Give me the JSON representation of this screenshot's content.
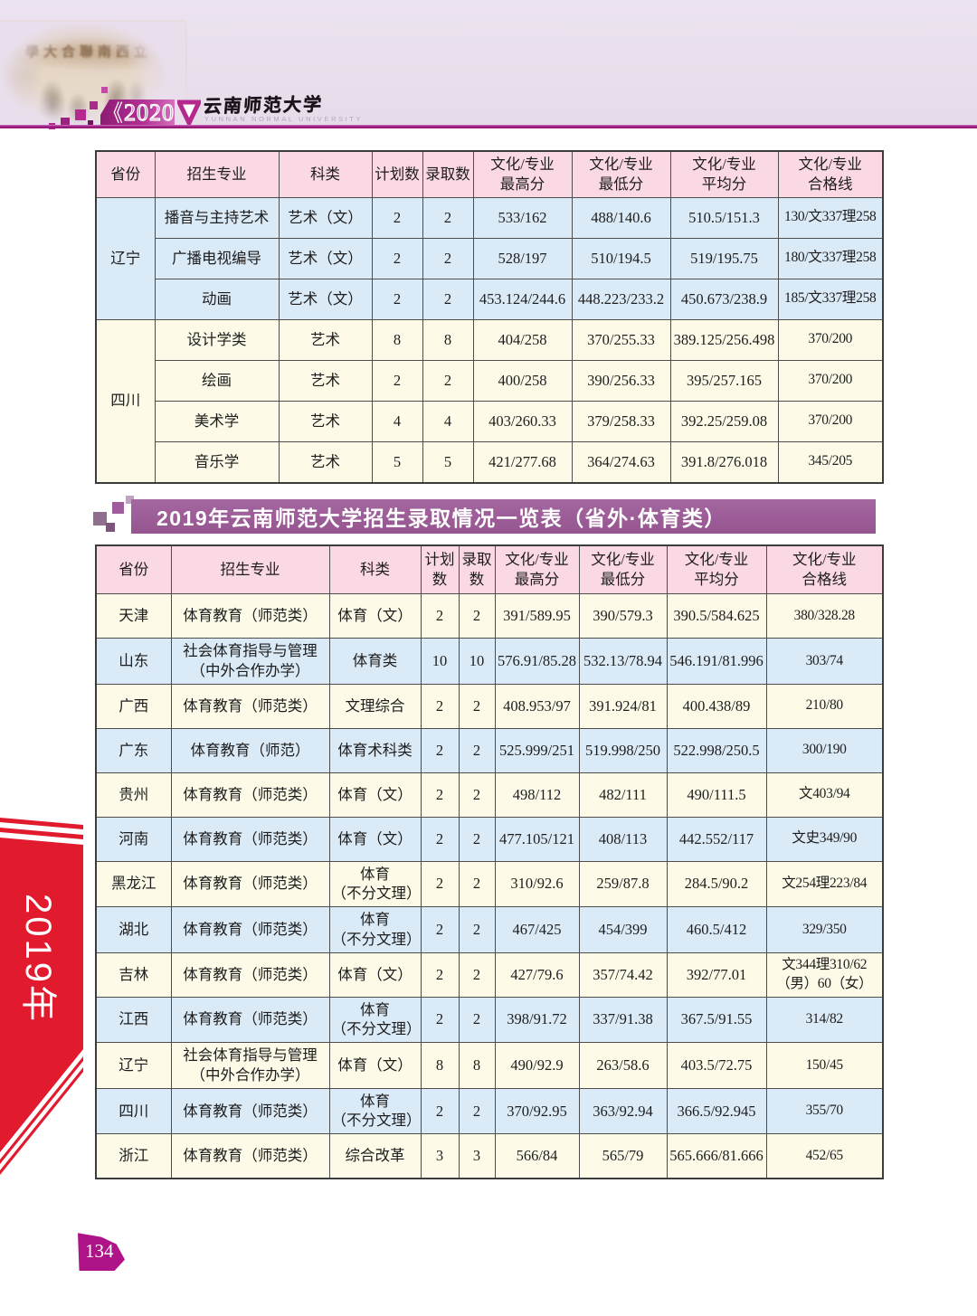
{
  "header": {
    "year_badge": "2020",
    "chevron": "《",
    "university_name": "云南师范大学",
    "university_name_en": "YUNNAN NORMAL UNIVERSITY",
    "photo_caption": "學大合聯南西立"
  },
  "section_banner": {
    "title": "2019年云南师范大学招生录取情况一览表（省外·体育类）"
  },
  "sidebar": {
    "year_label": "2019年"
  },
  "page_number": "134",
  "colors": {
    "accent_magenta": "#b5288e",
    "banner_purple": "#9d5d98",
    "ribbon_red": "#e11b2d",
    "header_row_pink": "#fbd9e4",
    "row_blue": "#dbeaf7",
    "row_cream": "#fdfbe8",
    "badge_magenta": "#ae1487"
  },
  "tables": [
    {
      "id": "t1",
      "headers": [
        "省份",
        "招生专业",
        "科类",
        "计划数",
        "录取数",
        "文化/专业\n最高分",
        "文化/专业\n最低分",
        "文化/专业\n平均分",
        "文化/专业\n合格线"
      ],
      "rows": [
        {
          "tone": "blue",
          "cells": [
            {
              "t": "辽宁",
              "rs": 3
            },
            "播音与主持艺术",
            "艺术（文）",
            "2",
            "2",
            "533/162",
            "488/140.6",
            "510.5/151.3",
            "130/文337理258"
          ]
        },
        {
          "tone": "blue",
          "cells": [
            "广播电视编导",
            "艺术（文）",
            "2",
            "2",
            "528/197",
            "510/194.5",
            "519/195.75",
            "180/文337理258"
          ]
        },
        {
          "tone": "blue",
          "cells": [
            "动画",
            "艺术（文）",
            "2",
            "2",
            "453.124/244.6",
            "448.223/233.2",
            "450.673/238.9",
            "185/文337理258"
          ]
        },
        {
          "tone": "cream",
          "cells": [
            {
              "t": "四川",
              "rs": 4
            },
            "设计学类",
            "艺术",
            "8",
            "8",
            "404/258",
            "370/255.33",
            "389.125/256.498",
            "370/200"
          ]
        },
        {
          "tone": "cream",
          "cells": [
            "绘画",
            "艺术",
            "2",
            "2",
            "400/258",
            "390/256.33",
            "395/257.165",
            "370/200"
          ]
        },
        {
          "tone": "cream",
          "cells": [
            "美术学",
            "艺术",
            "4",
            "4",
            "403/260.33",
            "379/258.33",
            "392.25/259.08",
            "370/200"
          ]
        },
        {
          "tone": "cream",
          "cells": [
            "音乐学",
            "艺术",
            "5",
            "5",
            "421/277.68",
            "364/274.63",
            "391.8/276.018",
            "345/205"
          ]
        }
      ]
    },
    {
      "id": "t2",
      "headers": [
        "省份",
        "招生专业",
        "科类",
        "计划\n数",
        "录取\n数",
        "文化/专业\n最高分",
        "文化/专业\n最低分",
        "文化/专业\n平均分",
        "文化/专业\n合格线"
      ],
      "rows": [
        {
          "tone": "cream",
          "cells": [
            "天津",
            "体育教育（师范类）",
            "体育（文）",
            "2",
            "2",
            "391/589.95",
            "390/579.3",
            "390.5/584.625",
            "380/328.28"
          ]
        },
        {
          "tone": "blue",
          "cells": [
            "山东",
            "社会体育指导与管理\n（中外合作办学）",
            "体育类",
            "10",
            "10",
            "576.91/85.28",
            "532.13/78.94",
            "546.191/81.996",
            "303/74"
          ]
        },
        {
          "tone": "cream",
          "cells": [
            "广西",
            "体育教育（师范类）",
            "文理综合",
            "2",
            "2",
            "408.953/97",
            "391.924/81",
            "400.438/89",
            "210/80"
          ]
        },
        {
          "tone": "blue",
          "cells": [
            "广东",
            "体育教育（师范）",
            "体育术科类",
            "2",
            "2",
            "525.999/251",
            "519.998/250",
            "522.998/250.5",
            "300/190"
          ]
        },
        {
          "tone": "cream",
          "cells": [
            "贵州",
            "体育教育（师范类）",
            "体育（文）",
            "2",
            "2",
            "498/112",
            "482/111",
            "490/111.5",
            "文403/94"
          ]
        },
        {
          "tone": "blue",
          "cells": [
            "河南",
            "体育教育（师范类）",
            "体育（文）",
            "2",
            "2",
            "477.105/121",
            "408/113",
            "442.552/117",
            "文史349/90"
          ]
        },
        {
          "tone": "cream",
          "cells": [
            "黑龙江",
            "体育教育（师范类）",
            "体育\n（不分文理）",
            "2",
            "2",
            "310/92.6",
            "259/87.8",
            "284.5/90.2",
            "文254理223/84"
          ]
        },
        {
          "tone": "blue",
          "cells": [
            "湖北",
            "体育教育（师范类）",
            "体育\n（不分文理）",
            "2",
            "2",
            "467/425",
            "454/399",
            "460.5/412",
            "329/350"
          ]
        },
        {
          "tone": "cream",
          "cells": [
            "吉林",
            "体育教育（师范类）",
            "体育（文）",
            "2",
            "2",
            "427/79.6",
            "357/74.42",
            "392/77.01",
            "文344理310/62\n（男）60（女）"
          ]
        },
        {
          "tone": "blue",
          "cells": [
            "江西",
            "体育教育（师范类）",
            "体育\n（不分文理）",
            "2",
            "2",
            "398/91.72",
            "337/91.38",
            "367.5/91.55",
            "314/82"
          ]
        },
        {
          "tone": "cream",
          "cells": [
            "辽宁",
            "社会体育指导与管理\n（中外合作办学）",
            "体育（文）",
            "8",
            "8",
            "490/92.9",
            "263/58.6",
            "403.5/72.75",
            "150/45"
          ]
        },
        {
          "tone": "blue",
          "cells": [
            "四川",
            "体育教育（师范类）",
            "体育\n（不分文理）",
            "2",
            "2",
            "370/92.95",
            "363/92.94",
            "366.5/92.945",
            "355/70"
          ]
        },
        {
          "tone": "cream",
          "cells": [
            "浙江",
            "体育教育（师范类）",
            "综合改革",
            "3",
            "3",
            "566/84",
            "565/79",
            "565.666/81.666",
            "452/65"
          ]
        }
      ]
    }
  ]
}
